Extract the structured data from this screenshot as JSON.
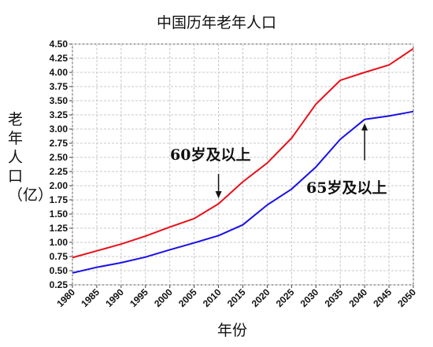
{
  "chart_data": {
    "type": "line",
    "title": "中国历年老年人口",
    "xlabel": "年份",
    "ylabel": "老年人口（亿）",
    "x": [
      1980,
      1985,
      1990,
      1995,
      2000,
      2005,
      2010,
      2015,
      2020,
      2025,
      2030,
      2035,
      2040,
      2045,
      2050
    ],
    "y_ticks": [
      "0.25",
      "0.50",
      "0.75",
      "1.00",
      "1.25",
      "1.50",
      "1.75",
      "2.00",
      "2.25",
      "2.50",
      "2.75",
      "3.00",
      "3.25",
      "3.50",
      "3.75",
      "4.00",
      "4.25",
      "4.50"
    ],
    "x_ticks": [
      "1980",
      "1985",
      "1990",
      "1995",
      "2000",
      "2005",
      "2010",
      "2015",
      "2020",
      "2025",
      "2030",
      "2035",
      "2040",
      "2045",
      "2050"
    ],
    "ylim": [
      0.25,
      4.5
    ],
    "xlim": [
      1980,
      2050
    ],
    "grid": true,
    "series": [
      {
        "name": "60岁及以上",
        "color": "#e8101a",
        "values": [
          0.73,
          0.85,
          0.97,
          1.11,
          1.27,
          1.42,
          1.68,
          2.07,
          2.4,
          2.84,
          3.44,
          3.86,
          4.0,
          4.13,
          4.42
        ]
      },
      {
        "name": "65岁及以上",
        "color": "#1a10e6",
        "values": [
          0.46,
          0.56,
          0.64,
          0.74,
          0.87,
          0.99,
          1.12,
          1.31,
          1.66,
          1.94,
          2.33,
          2.82,
          3.17,
          3.23,
          3.31
        ]
      }
    ],
    "annotations": [
      {
        "label": "60岁及以上",
        "x": 2010,
        "y": 1.68
      },
      {
        "label": "65岁及以上",
        "x": 2040,
        "y": 3.17
      }
    ]
  }
}
